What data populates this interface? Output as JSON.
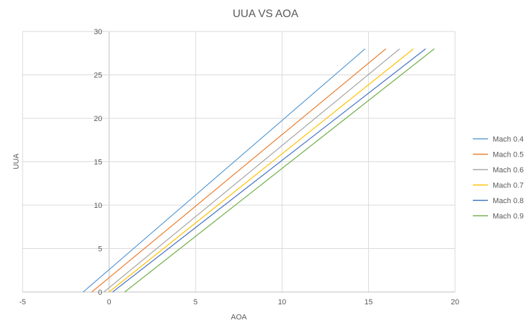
{
  "chart_data": {
    "type": "line",
    "title": "UUA VS AOA",
    "xlabel": "AOA",
    "ylabel": "UUA",
    "xlim": [
      -5,
      20
    ],
    "ylim": [
      0,
      30
    ],
    "xticks": [
      -5,
      0,
      5,
      10,
      15,
      20
    ],
    "yticks": [
      0,
      5,
      10,
      15,
      20,
      25,
      30
    ],
    "grid": true,
    "legend_position": "right",
    "series": [
      {
        "name": "Mach 0.4",
        "color": "#5B9BD5",
        "x": [
          -1.5,
          14.8
        ],
        "y": [
          0,
          28
        ]
      },
      {
        "name": "Mach 0.5",
        "color": "#ED7D31",
        "x": [
          -1.0,
          16.0
        ],
        "y": [
          0,
          28
        ]
      },
      {
        "name": "Mach 0.6",
        "color": "#A5A5A5",
        "x": [
          -0.3,
          16.8
        ],
        "y": [
          0,
          28
        ]
      },
      {
        "name": "Mach 0.7",
        "color": "#FFC000",
        "x": [
          0.0,
          17.6
        ],
        "y": [
          0,
          28
        ]
      },
      {
        "name": "Mach 0.8",
        "color": "#4472C4",
        "x": [
          0.2,
          18.3
        ],
        "y": [
          0,
          28
        ]
      },
      {
        "name": "Mach 0.9",
        "color": "#70AD47",
        "x": [
          0.9,
          18.8
        ],
        "y": [
          0,
          28
        ]
      }
    ]
  }
}
